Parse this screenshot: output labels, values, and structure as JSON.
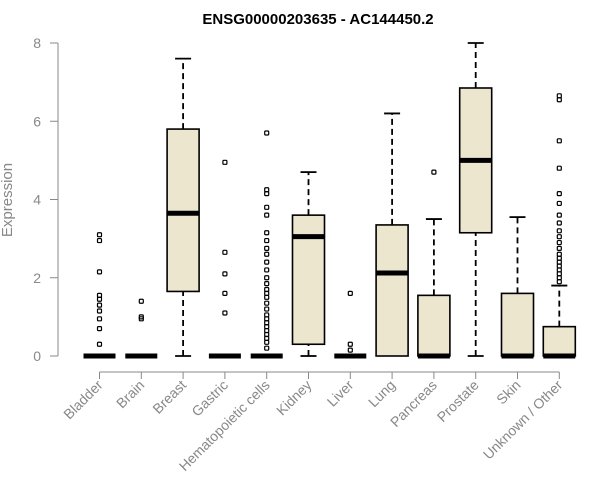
{
  "chart_data": {
    "type": "boxplot",
    "title": "ENSG00000203635 - AC144450.2",
    "ylabel": "Expression",
    "xlabel": "",
    "ylim": [
      0,
      8
    ],
    "yticks": [
      0,
      2,
      4,
      6,
      8
    ],
    "categories": [
      "Bladder",
      "Brain",
      "Breast",
      "Gastric",
      "Hematopoietic cells",
      "Kidney",
      "Liver",
      "Lung",
      "Pancreas",
      "Prostate",
      "Skin",
      "Unknown / Other"
    ],
    "boxes": [
      {
        "name": "Bladder",
        "min": 0,
        "q1": 0,
        "median": 0,
        "q3": 0,
        "max": 0,
        "outliers": [
          0.3,
          0.7,
          0.95,
          1.15,
          1.3,
          1.45,
          1.55,
          2.15,
          2.95,
          3.1
        ]
      },
      {
        "name": "Brain",
        "min": 0,
        "q1": 0,
        "median": 0,
        "q3": 0,
        "max": 0,
        "outliers": [
          0.95,
          1.0,
          1.4
        ]
      },
      {
        "name": "Breast",
        "min": 0,
        "q1": 1.65,
        "median": 3.65,
        "q3": 5.8,
        "max": 7.6,
        "outliers": []
      },
      {
        "name": "Gastric",
        "min": 0,
        "q1": 0,
        "median": 0,
        "q3": 0,
        "max": 0,
        "outliers": [
          1.1,
          1.6,
          2.1,
          2.65,
          4.95
        ]
      },
      {
        "name": "Hematopoietic cells",
        "min": 0,
        "q1": 0,
        "median": 0,
        "q3": 0,
        "max": 0,
        "outliers": [
          0.2,
          0.35,
          0.45,
          0.55,
          0.65,
          0.75,
          0.85,
          0.95,
          1.05,
          1.2,
          1.35,
          1.5,
          1.6,
          1.7,
          1.85,
          2.0,
          2.2,
          2.4,
          2.6,
          2.75,
          2.95,
          3.15,
          3.6,
          3.8,
          4.15,
          4.25,
          5.7
        ]
      },
      {
        "name": "Kidney",
        "min": 0,
        "q1": 0.3,
        "median": 3.05,
        "q3": 3.6,
        "max": 4.7,
        "outliers": []
      },
      {
        "name": "Liver",
        "min": 0,
        "q1": 0,
        "median": 0,
        "q3": 0,
        "max": 0,
        "outliers": [
          0.15,
          0.3,
          1.6
        ]
      },
      {
        "name": "Lung",
        "min": 0,
        "q1": 0,
        "median": 2.12,
        "q3": 3.35,
        "max": 6.2,
        "outliers": []
      },
      {
        "name": "Pancreas",
        "min": 0,
        "q1": 0,
        "median": 0,
        "q3": 1.55,
        "max": 3.5,
        "outliers": [
          4.7
        ]
      },
      {
        "name": "Prostate",
        "min": 0,
        "q1": 3.15,
        "median": 5.0,
        "q3": 6.85,
        "max": 8.0,
        "outliers": []
      },
      {
        "name": "Skin",
        "min": 0,
        "q1": 0,
        "median": 0,
        "q3": 1.6,
        "max": 3.55,
        "outliers": []
      },
      {
        "name": "Unknown / Other",
        "min": 0,
        "q1": 0,
        "median": 0,
        "q3": 0.75,
        "max": 1.8,
        "outliers": [
          1.9,
          2.0,
          2.1,
          2.2,
          2.3,
          2.4,
          2.5,
          2.6,
          2.75,
          2.9,
          3.05,
          3.2,
          3.4,
          3.6,
          3.9,
          4.15,
          4.8,
          5.5,
          6.55,
          6.65
        ]
      }
    ]
  }
}
